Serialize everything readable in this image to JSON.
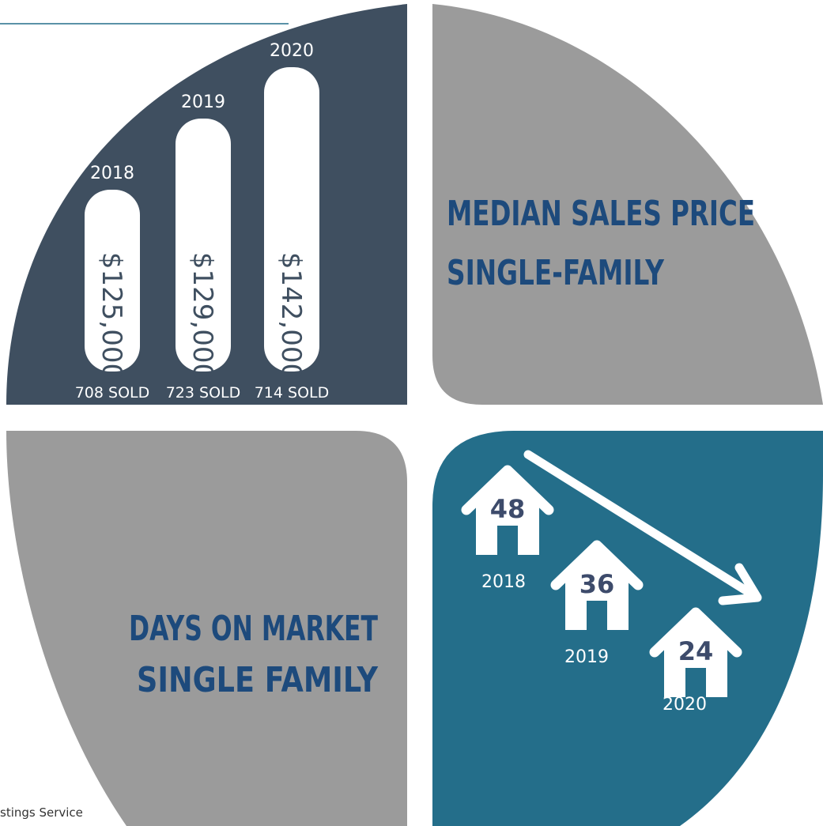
{
  "price_panel": {
    "title": "MEDIAN SALES PRICE",
    "subtitle": "SINGLE-FAMILY",
    "bars": [
      {
        "year": "2018",
        "price": "$125,000",
        "sold": "708 SOLD"
      },
      {
        "year": "2019",
        "price": "$129,000",
        "sold": "723 SOLD"
      },
      {
        "year": "2020",
        "price": "$142,000",
        "sold": "714 SOLD"
      }
    ]
  },
  "days_panel": {
    "title": "DAYS ON MARKET",
    "subtitle": "SINGLE FAMILY",
    "houses": [
      {
        "days": 48,
        "year": "2018"
      },
      {
        "days": 36,
        "year": "2019"
      },
      {
        "days": 24,
        "year": "2020"
      }
    ]
  },
  "footer": {
    "source": "stings Service"
  }
}
